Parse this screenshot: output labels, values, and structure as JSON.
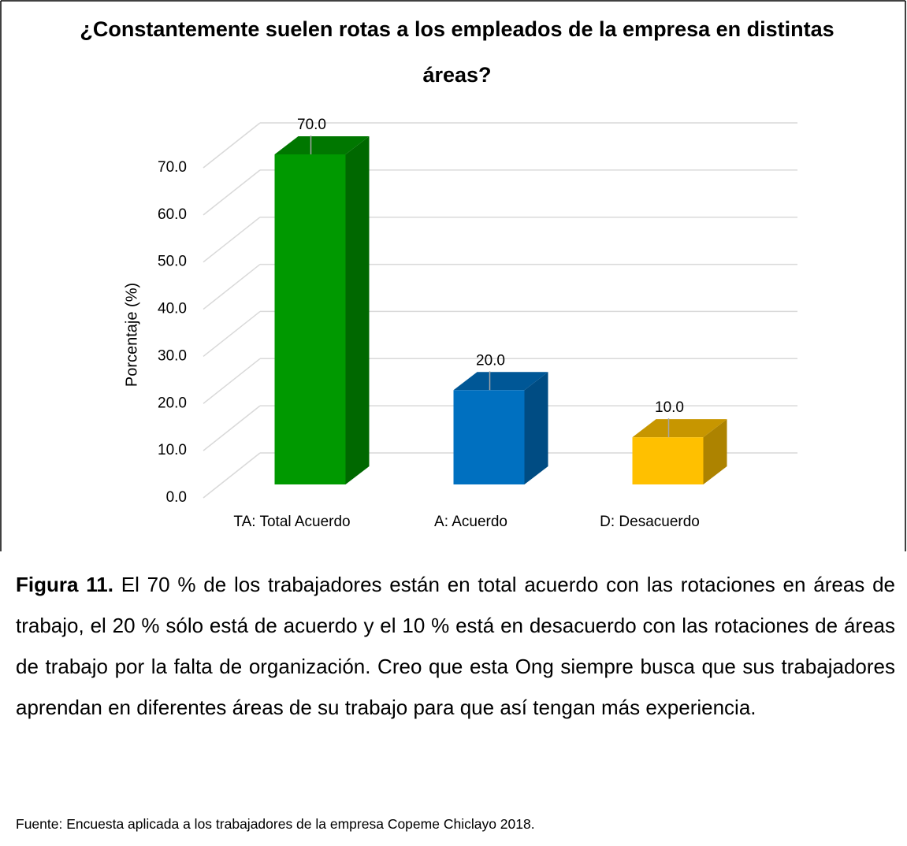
{
  "chart_data": {
    "type": "bar3d",
    "title": "¿Constantemente suelen rotas a los empleados de la empresa en distintas áreas?",
    "ylabel": "Porcentaje (%)",
    "categories": [
      "TA: Total Acuerdo",
      "A: Acuerdo",
      "D: Desacuerdo"
    ],
    "values": [
      70,
      20,
      10
    ],
    "value_labels": [
      "70.0",
      "20.0",
      "10.0"
    ],
    "colors": [
      "#009900",
      "#0070c0",
      "#ffc000"
    ],
    "ylim": [
      0,
      70
    ],
    "yticks": [
      {
        "value": 0,
        "label": "0.0"
      },
      {
        "value": 10,
        "label": "10.0"
      },
      {
        "value": 20,
        "label": "20.0"
      },
      {
        "value": 30,
        "label": "30.0"
      },
      {
        "value": 40,
        "label": "40.0"
      },
      {
        "value": 50,
        "label": "50.0"
      },
      {
        "value": 60,
        "label": "60.0"
      },
      {
        "value": 70,
        "label": "70.0"
      }
    ],
    "grid": true
  },
  "caption": {
    "label": "Figura 11.",
    "text": "El 70 % de los trabajadores están en total acuerdo con las rotaciones en áreas de trabajo, el 20 % sólo está de acuerdo y el 10 % está en desacuerdo con las rotaciones de áreas de trabajo por la falta de organización. Creo que esta Ong siempre busca que sus trabajadores aprendan en diferentes áreas de su trabajo para que así tengan más experiencia."
  },
  "source": "Fuente: Encuesta aplicada a los trabajadores de la empresa Copeme Chiclayo 2018."
}
